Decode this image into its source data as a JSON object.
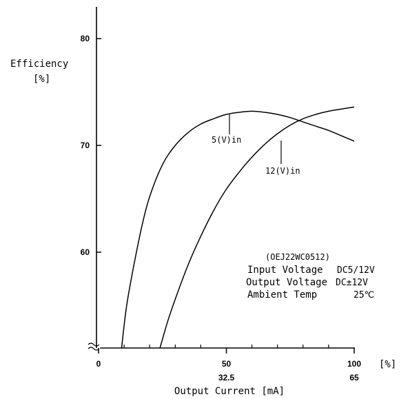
{
  "chart_data": {
    "type": "line",
    "ylabel": "Efficiency",
    "ylabel_unit": "[%]",
    "xlabel": "Output Current [mA]",
    "x_unit": "[%]",
    "xlim": [
      0,
      100
    ],
    "ylim": [
      51,
      83
    ],
    "y_ticks": [
      {
        "value": 80,
        "label": "80"
      },
      {
        "value": 70,
        "label": "70"
      },
      {
        "value": 60,
        "label": "60"
      }
    ],
    "x_ticks": [
      {
        "value": 0,
        "label": "0",
        "sub": ""
      },
      {
        "value": 50,
        "label": "50",
        "sub": "32.5"
      },
      {
        "value": 100,
        "label": "100",
        "sub": "65"
      }
    ],
    "x_minor_ticks": [
      10,
      20,
      30,
      40,
      60,
      70,
      80,
      90
    ],
    "series": [
      {
        "name": "5(V)in",
        "x": [
          9,
          11,
          14,
          17,
          20,
          25,
          30,
          35,
          40,
          45,
          50,
          55,
          60,
          65,
          70,
          75,
          80,
          85,
          90,
          95,
          100
        ],
        "y": [
          51,
          55,
          59,
          62.5,
          65.2,
          68.2,
          70,
          71.2,
          72,
          72.5,
          72.9,
          73.1,
          73.2,
          73.1,
          72.9,
          72.6,
          72.2,
          71.8,
          71.4,
          70.9,
          70.4
        ]
      },
      {
        "name": "12(V)in",
        "x": [
          24,
          27,
          30,
          35,
          40,
          45,
          50,
          55,
          60,
          65,
          70,
          75,
          80,
          85,
          90,
          95,
          100
        ],
        "y": [
          51,
          53.5,
          55.6,
          58.8,
          61.5,
          63.9,
          65.9,
          67.5,
          68.9,
          70.1,
          71.1,
          71.9,
          72.5,
          72.9,
          73.2,
          73.4,
          73.6
        ]
      }
    ],
    "annotations": {
      "model": "(OEJ22WC0512)",
      "conditions": [
        {
          "label": "Input Voltage",
          "value": "DC5/12V"
        },
        {
          "label": "Output Voltage",
          "value": "DC±12V"
        },
        {
          "label": "Ambient Temp",
          "value": "25℃"
        }
      ]
    }
  }
}
